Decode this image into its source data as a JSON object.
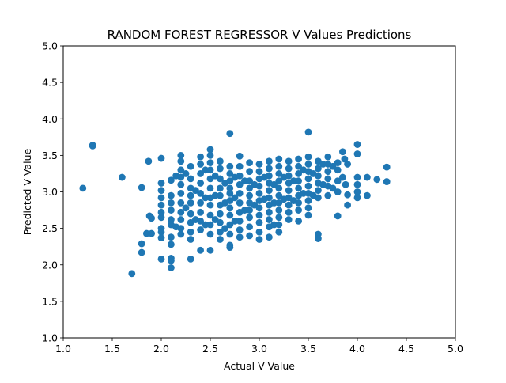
{
  "chart_data": {
    "type": "scatter",
    "title": "RANDOM FOREST REGRESSOR V Values Predictions",
    "xlabel": "Actual V Value",
    "ylabel": "Predicted V Value",
    "xlim": [
      1.0,
      5.0
    ],
    "ylim": [
      1.0,
      5.0
    ],
    "xticks": [
      "1.0",
      "1.5",
      "2.0",
      "2.5",
      "3.0",
      "3.5",
      "4.0",
      "4.5",
      "5.0"
    ],
    "yticks": [
      "1.0",
      "1.5",
      "2.0",
      "2.5",
      "3.0",
      "3.5",
      "4.0",
      "4.5",
      "5.0"
    ],
    "grid": false,
    "legend": "none",
    "marker_color": "#1f77b4",
    "series": [
      {
        "x": [
          1.2,
          1.3,
          1.3,
          1.6,
          1.7,
          1.8,
          1.8,
          1.8,
          1.85,
          1.87,
          1.88,
          1.9,
          1.9,
          2.0,
          2.0,
          2.0,
          2.0,
          2.0,
          2.0,
          2.0,
          2.0,
          2.0,
          2.0,
          2.0,
          2.1,
          2.1,
          2.1,
          2.1,
          2.1,
          2.1,
          2.1,
          2.1,
          2.1,
          2.1,
          2.1,
          2.15,
          2.15,
          2.2,
          2.2,
          2.2,
          2.2,
          2.2,
          2.2,
          2.2,
          2.2,
          2.2,
          2.2,
          2.2,
          2.25,
          2.25,
          2.3,
          2.3,
          2.3,
          2.3,
          2.3,
          2.3,
          2.3,
          2.3,
          2.3,
          2.3,
          2.35,
          2.35,
          2.4,
          2.4,
          2.4,
          2.4,
          2.4,
          2.4,
          2.4,
          2.4,
          2.4,
          2.4,
          2.45,
          2.45,
          2.45,
          2.5,
          2.5,
          2.5,
          2.5,
          2.5,
          2.5,
          2.5,
          2.5,
          2.5,
          2.5,
          2.5,
          2.5,
          2.55,
          2.55,
          2.55,
          2.6,
          2.6,
          2.6,
          2.6,
          2.6,
          2.6,
          2.6,
          2.6,
          2.6,
          2.6,
          2.65,
          2.65,
          2.65,
          2.7,
          2.7,
          2.7,
          2.7,
          2.7,
          2.7,
          2.7,
          2.7,
          2.7,
          2.7,
          2.7,
          2.7,
          2.7,
          2.75,
          2.75,
          2.75,
          2.8,
          2.8,
          2.8,
          2.8,
          2.8,
          2.8,
          2.8,
          2.8,
          2.8,
          2.8,
          2.85,
          2.85,
          2.9,
          2.9,
          2.9,
          2.9,
          2.9,
          2.9,
          2.9,
          2.9,
          2.9,
          2.9,
          2.95,
          2.95,
          3.0,
          3.0,
          3.0,
          3.0,
          3.0,
          3.0,
          3.0,
          3.0,
          3.0,
          3.0,
          3.0,
          3.05,
          3.05,
          3.1,
          3.1,
          3.1,
          3.1,
          3.1,
          3.1,
          3.1,
          3.1,
          3.1,
          3.1,
          3.1,
          3.15,
          3.15,
          3.15,
          3.2,
          3.2,
          3.2,
          3.2,
          3.2,
          3.2,
          3.2,
          3.2,
          3.2,
          3.2,
          3.2,
          3.25,
          3.25,
          3.3,
          3.3,
          3.3,
          3.3,
          3.3,
          3.3,
          3.3,
          3.3,
          3.3,
          3.35,
          3.35,
          3.4,
          3.4,
          3.4,
          3.4,
          3.4,
          3.4,
          3.4,
          3.4,
          3.4,
          3.45,
          3.45,
          3.5,
          3.5,
          3.5,
          3.5,
          3.5,
          3.5,
          3.5,
          3.5,
          3.5,
          3.5,
          3.55,
          3.55,
          3.6,
          3.6,
          3.6,
          3.6,
          3.6,
          3.6,
          3.6,
          3.6,
          3.65,
          3.65,
          3.7,
          3.7,
          3.7,
          3.7,
          3.7,
          3.7,
          3.75,
          3.75,
          3.8,
          3.8,
          3.8,
          3.8,
          3.8,
          3.85,
          3.85,
          3.87,
          3.88,
          3.9,
          3.9,
          3.9,
          4.0,
          4.0,
          4.0,
          4.0,
          4.0,
          4.0,
          4.1,
          4.1,
          4.2,
          4.3,
          4.3
        ],
        "y": [
          3.05,
          3.64,
          3.63,
          3.2,
          1.88,
          3.06,
          2.29,
          2.17,
          2.43,
          3.42,
          2.67,
          2.64,
          2.43,
          3.46,
          3.12,
          3.02,
          2.92,
          2.82,
          2.65,
          2.5,
          2.45,
          2.37,
          2.08,
          2.72,
          3.16,
          2.95,
          2.85,
          2.62,
          2.55,
          2.38,
          2.28,
          2.09,
          2.06,
          1.96,
          2.75,
          3.22,
          2.52,
          3.5,
          3.42,
          3.3,
          3.2,
          3.1,
          2.98,
          2.85,
          2.72,
          2.62,
          2.5,
          2.42,
          3.25,
          2.78,
          3.35,
          3.18,
          3.05,
          2.95,
          2.85,
          2.7,
          2.58,
          2.45,
          2.35,
          2.08,
          3.02,
          2.62,
          3.48,
          3.38,
          3.25,
          3.12,
          2.98,
          2.85,
          2.72,
          2.6,
          2.48,
          2.2,
          3.3,
          2.92,
          2.55,
          3.58,
          3.5,
          3.4,
          3.3,
          3.18,
          3.05,
          2.92,
          2.82,
          2.68,
          2.55,
          2.42,
          2.2,
          3.22,
          2.95,
          2.62,
          3.42,
          3.32,
          3.18,
          3.05,
          2.95,
          2.82,
          2.7,
          2.58,
          2.45,
          2.35,
          3.12,
          2.85,
          2.5,
          3.8,
          3.35,
          3.25,
          3.15,
          3.05,
          2.98,
          2.88,
          2.78,
          2.68,
          2.55,
          2.42,
          2.27,
          2.24,
          3.2,
          2.92,
          2.6,
          3.49,
          3.35,
          3.22,
          3.1,
          2.98,
          2.85,
          2.72,
          2.6,
          2.48,
          2.38,
          3.15,
          2.75,
          3.4,
          3.28,
          3.15,
          3.05,
          2.95,
          2.85,
          2.75,
          2.65,
          2.52,
          2.4,
          3.1,
          2.82,
          3.38,
          3.28,
          3.18,
          3.08,
          2.98,
          2.88,
          2.78,
          2.68,
          2.58,
          2.45,
          2.35,
          3.2,
          2.9,
          3.42,
          3.32,
          3.22,
          3.12,
          3.02,
          2.92,
          2.82,
          2.72,
          2.62,
          2.52,
          2.38,
          3.1,
          2.85,
          2.55,
          3.45,
          3.35,
          3.25,
          3.15,
          3.05,
          2.95,
          2.85,
          2.75,
          2.65,
          2.55,
          2.45,
          3.2,
          2.9,
          3.42,
          3.32,
          3.22,
          3.12,
          3.02,
          2.92,
          2.82,
          2.72,
          2.62,
          3.15,
          2.88,
          3.45,
          3.35,
          3.25,
          3.15,
          3.05,
          2.95,
          2.85,
          2.75,
          2.6,
          3.3,
          2.98,
          3.82,
          3.48,
          3.38,
          3.28,
          3.18,
          3.08,
          2.98,
          2.88,
          2.78,
          2.68,
          3.25,
          2.95,
          3.42,
          3.32,
          3.22,
          3.12,
          3.02,
          2.92,
          2.42,
          2.36,
          3.38,
          3.1,
          3.48,
          3.38,
          3.28,
          3.18,
          3.08,
          2.95,
          3.35,
          3.05,
          3.4,
          3.3,
          3.15,
          3.0,
          2.67,
          3.55,
          3.2,
          3.45,
          3.1,
          3.38,
          2.96,
          2.82,
          3.65,
          3.52,
          3.2,
          3.1,
          3.0,
          2.92,
          3.2,
          2.95,
          3.17,
          3.34,
          3.14
        ]
      }
    ]
  }
}
